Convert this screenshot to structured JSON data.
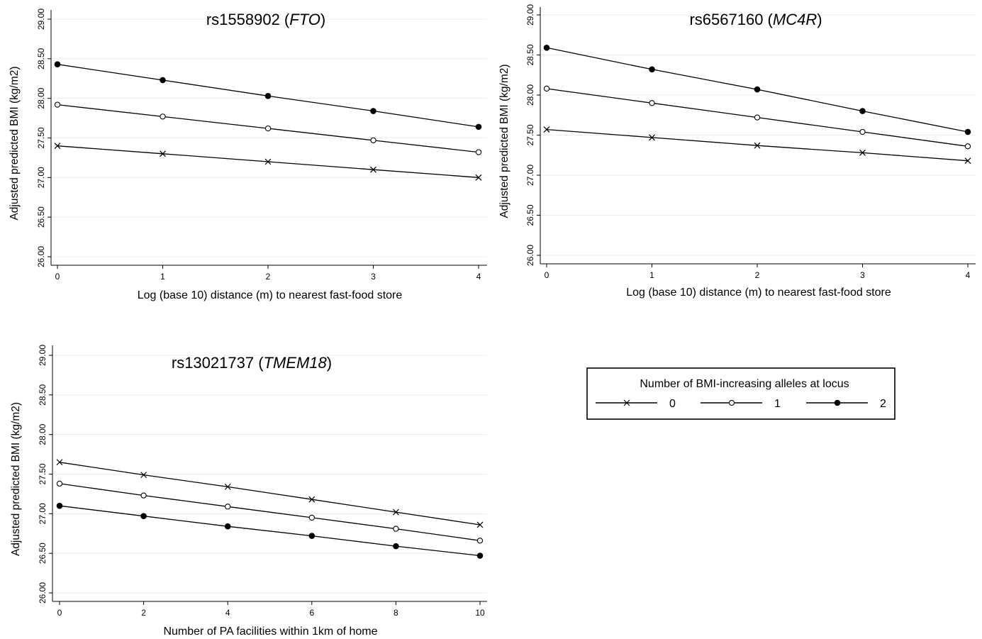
{
  "chart_data": [
    {
      "id": "fto",
      "type": "line",
      "title": "rs1558902",
      "title_gene": "FTO",
      "xlabel": "Log (base 10) distance (m) to nearest fast-food store",
      "ylabel": "Adjusted predicted BMI (kg/m2)",
      "xlim": [
        0,
        4
      ],
      "ylim": [
        26.0,
        29.0
      ],
      "xticks": [
        0,
        1,
        2,
        3,
        4
      ],
      "yticks": [
        "26.00",
        "26.50",
        "27.00",
        "27.50",
        "28.00",
        "28.50",
        "29.00"
      ],
      "x": [
        0,
        1,
        2,
        3,
        4
      ],
      "series": [
        {
          "name": "0",
          "marker": "x",
          "values": [
            27.4,
            27.3,
            27.2,
            27.1,
            27.0
          ]
        },
        {
          "name": "1",
          "marker": "open-circle",
          "values": [
            27.92,
            27.77,
            27.62,
            27.47,
            27.32
          ]
        },
        {
          "name": "2",
          "marker": "filled-circle",
          "values": [
            28.43,
            28.23,
            28.03,
            27.84,
            27.64
          ]
        }
      ]
    },
    {
      "id": "mc4r",
      "type": "line",
      "title": "rs6567160",
      "title_gene": "MC4R",
      "xlabel": "Log (base 10) distance (m) to nearest fast-food store",
      "ylabel": "Adjusted predicted BMI (kg/m2)",
      "xlim": [
        0,
        4
      ],
      "ylim": [
        26.0,
        29.0
      ],
      "xticks": [
        0,
        1,
        2,
        3,
        4
      ],
      "yticks": [
        "26.00",
        "26.50",
        "27.00",
        "27.50",
        "28.00",
        "28.50",
        "29.00"
      ],
      "x": [
        0,
        1,
        2,
        3,
        4
      ],
      "series": [
        {
          "name": "0",
          "marker": "x",
          "values": [
            27.57,
            27.47,
            27.37,
            27.28,
            27.18
          ]
        },
        {
          "name": "1",
          "marker": "open-circle",
          "values": [
            28.08,
            27.9,
            27.72,
            27.54,
            27.36
          ]
        },
        {
          "name": "2",
          "marker": "filled-circle",
          "values": [
            28.59,
            28.32,
            28.07,
            27.8,
            27.54
          ]
        }
      ]
    },
    {
      "id": "tmem18",
      "type": "line",
      "title": "rs13021737",
      "title_gene": "TMEM18",
      "xlabel": "Number of PA facilities within 1km of home",
      "ylabel": "Adjusted predicted BMI (kg/m2)",
      "xlim": [
        0,
        10
      ],
      "ylim": [
        26.0,
        29.0
      ],
      "xticks": [
        0,
        2,
        4,
        6,
        8,
        10
      ],
      "yticks": [
        "26.00",
        "26.50",
        "27.00",
        "27.50",
        "28.00",
        "28.50",
        "29.00"
      ],
      "x": [
        0,
        2,
        4,
        6,
        8,
        10
      ],
      "series": [
        {
          "name": "0",
          "marker": "x",
          "values": [
            27.65,
            27.49,
            27.34,
            27.18,
            27.02,
            26.86
          ]
        },
        {
          "name": "1",
          "marker": "open-circle",
          "values": [
            27.38,
            27.23,
            27.09,
            26.95,
            26.81,
            26.66
          ]
        },
        {
          "name": "2",
          "marker": "filled-circle",
          "values": [
            27.1,
            26.97,
            26.84,
            26.72,
            26.59,
            26.47
          ]
        }
      ]
    }
  ],
  "legend": {
    "title": "Number of BMI-increasing alleles at locus",
    "items": [
      {
        "label": "0",
        "marker": "x"
      },
      {
        "label": "1",
        "marker": "open-circle"
      },
      {
        "label": "2",
        "marker": "filled-circle"
      }
    ]
  }
}
